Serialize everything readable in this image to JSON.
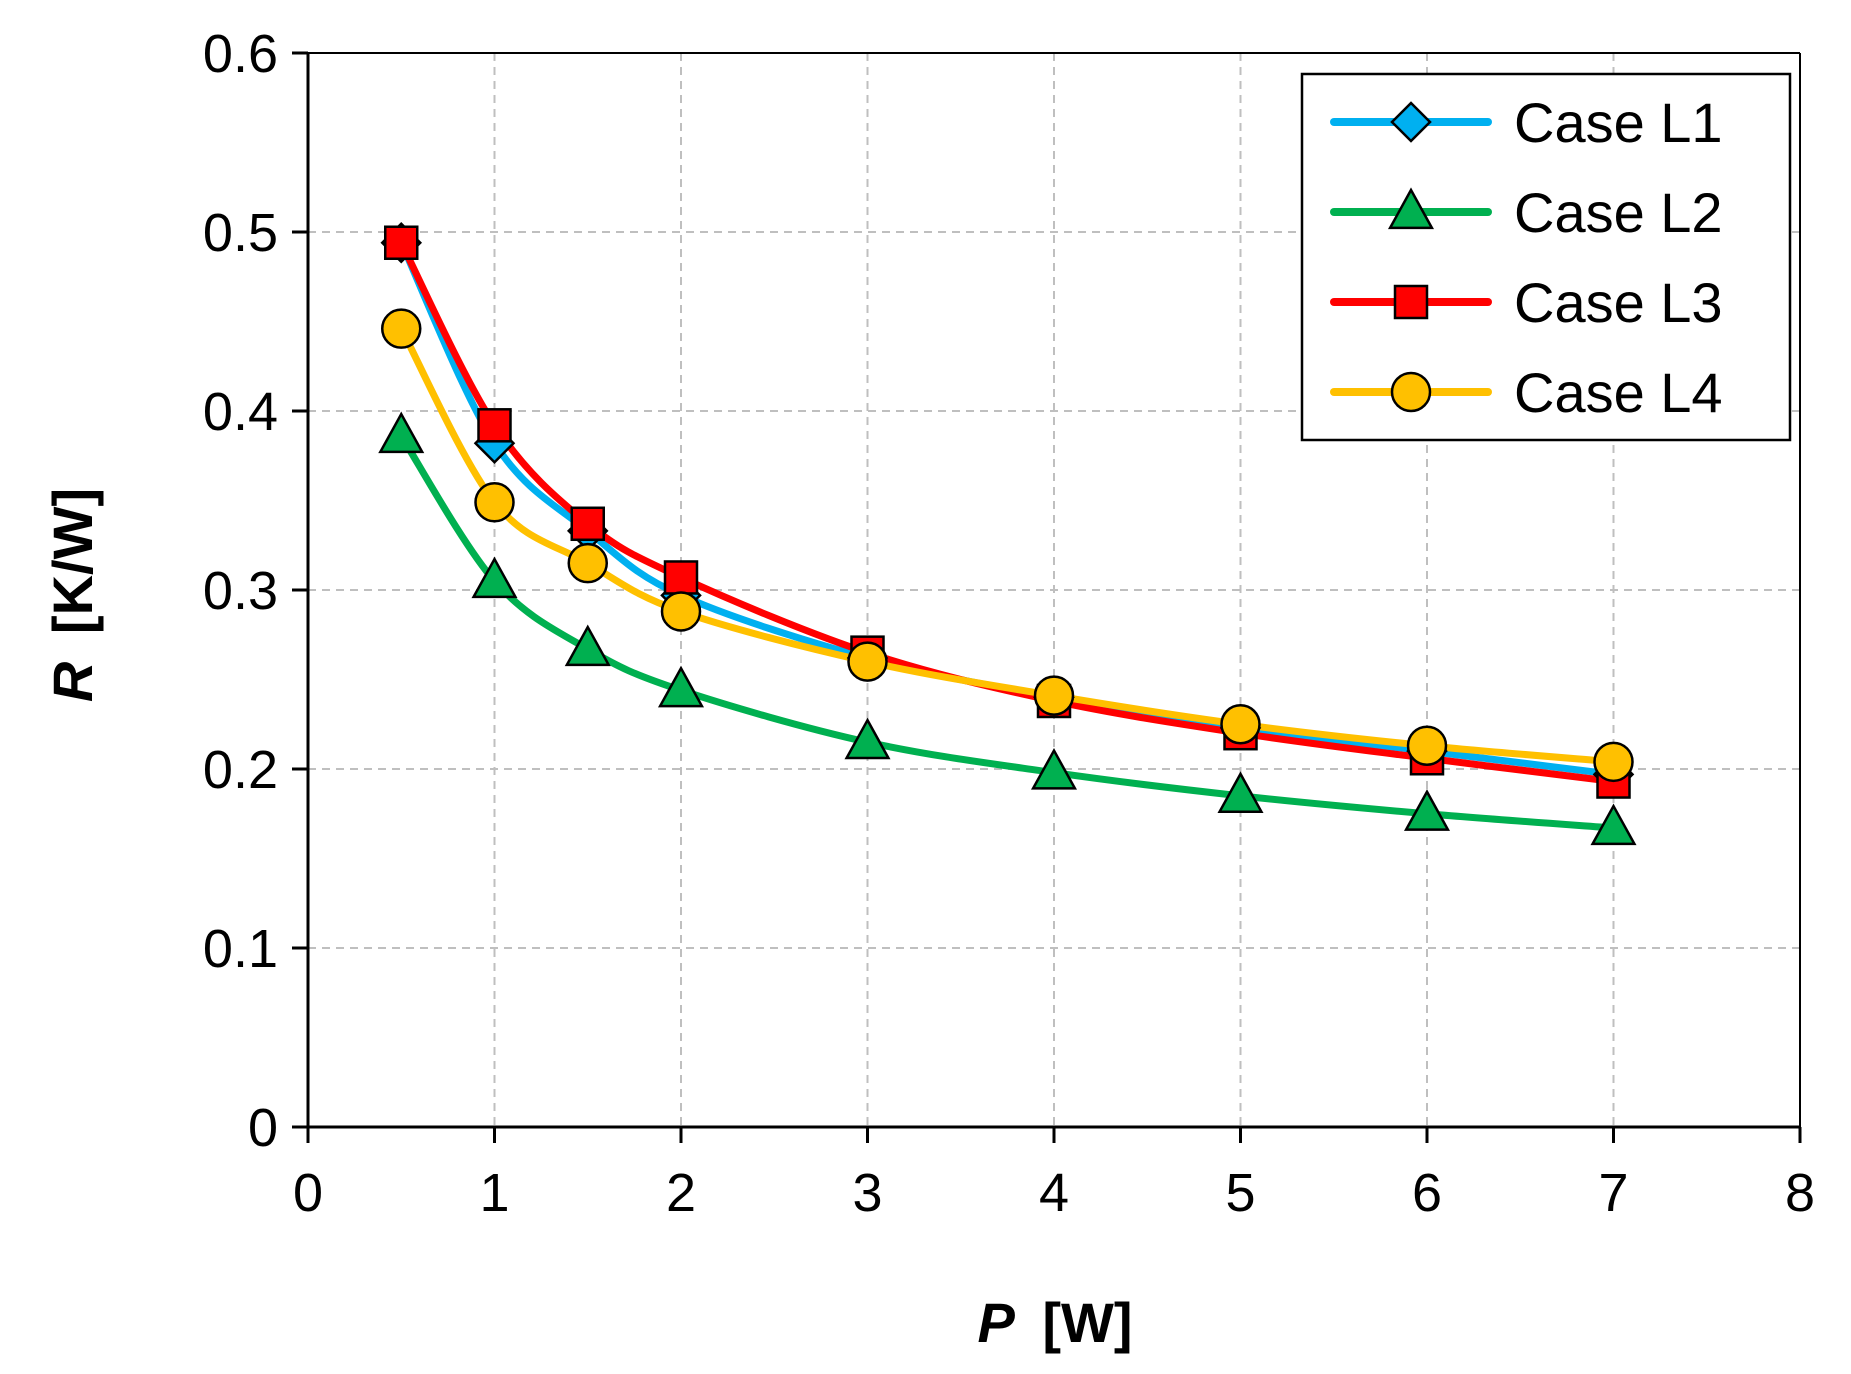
{
  "chart_data": {
    "type": "line",
    "title": "",
    "xlabel": {
      "var": "P",
      "unit": "[W]"
    },
    "ylabel": {
      "var": "R",
      "unit": "[K/W]"
    },
    "xlim": [
      0,
      8
    ],
    "ylim": [
      0,
      0.6
    ],
    "x_ticks": [
      "0",
      "1",
      "2",
      "3",
      "4",
      "5",
      "6",
      "7",
      "8"
    ],
    "y_ticks": [
      "0",
      "0.1",
      "0.2",
      "0.3",
      "0.4",
      "0.5",
      "0.6"
    ],
    "grid": true,
    "legend_position": "top-right",
    "x": [
      0.5,
      1,
      1.5,
      2,
      3,
      4,
      5,
      6,
      7
    ],
    "series": [
      {
        "name": "Case L1",
        "marker": "diamond",
        "color": "#00B0F0",
        "values": [
          0.494,
          0.382,
          0.333,
          0.297,
          0.262,
          0.24,
          0.223,
          0.21,
          0.197
        ]
      },
      {
        "name": "Case L2",
        "marker": "triangle",
        "color": "#00B050",
        "values": [
          0.386,
          0.305,
          0.267,
          0.244,
          0.215,
          0.198,
          0.185,
          0.175,
          0.167
        ]
      },
      {
        "name": "Case L3",
        "marker": "square",
        "color": "#FF0000",
        "values": [
          0.494,
          0.392,
          0.337,
          0.307,
          0.265,
          0.238,
          0.22,
          0.206,
          0.193
        ]
      },
      {
        "name": "Case L4",
        "marker": "circle",
        "color": "#FFC000",
        "values": [
          0.446,
          0.349,
          0.315,
          0.288,
          0.26,
          0.241,
          0.225,
          0.213,
          0.204
        ]
      }
    ]
  }
}
